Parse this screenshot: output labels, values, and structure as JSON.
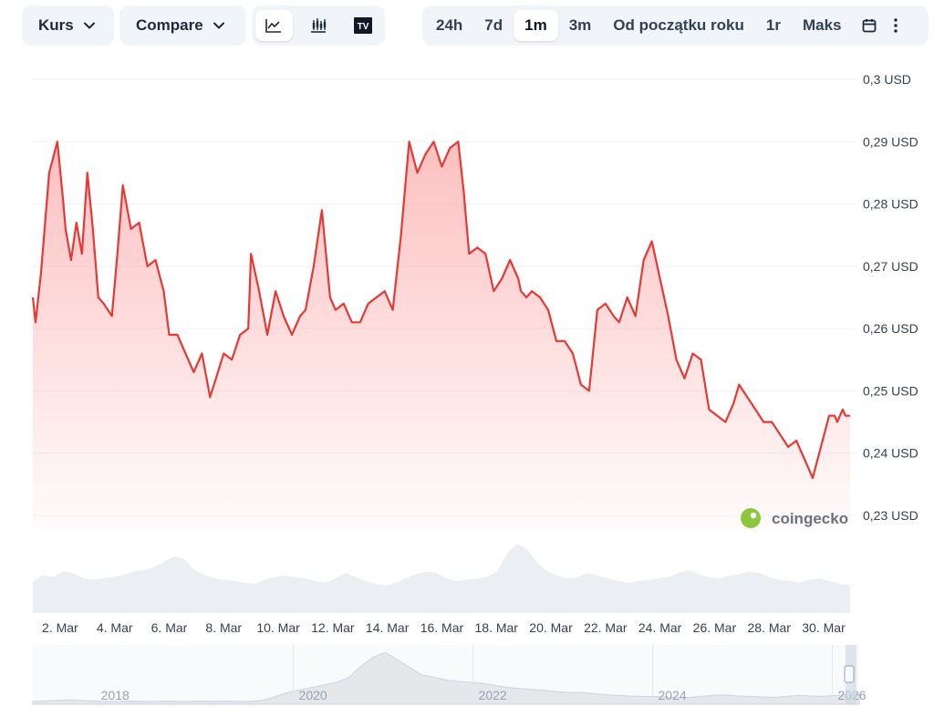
{
  "toolbar": {
    "metric_label": "Kurs",
    "compare_label": "Compare",
    "chart_icons": [
      "line-chart-icon",
      "candlestick-icon",
      "tradingview-icon"
    ],
    "ranges": [
      "24h",
      "7d",
      "1m",
      "3m",
      "Od początku roku",
      "1r",
      "Maks"
    ],
    "active_range": "1m",
    "tv_glyph": "TV"
  },
  "colors": {
    "line": "#e53935",
    "fill": "#fca5a5",
    "volume": "#e2e8f0",
    "grid": "#eef2f6",
    "active_bg": "#ffffff",
    "group_bg": "#f1f5f9"
  },
  "watermark": "coingecko",
  "chart_data": {
    "type": "line",
    "title": "",
    "xlabel": "",
    "ylabel": "",
    "ylim": [
      0.225,
      0.3
    ],
    "y_ticks": [
      "0,3 USD",
      "0,29 USD",
      "0,28 USD",
      "0,27 USD",
      "0,26 USD",
      "0,25 USD",
      "0,24 USD",
      "0,23 USD"
    ],
    "y_tick_values": [
      0.3,
      0.29,
      0.28,
      0.27,
      0.26,
      0.25,
      0.24,
      0.23
    ],
    "x_ticks": [
      "2. Mar",
      "4. Mar",
      "6. Mar",
      "8. Mar",
      "10. Mar",
      "12. Mar",
      "14. Mar",
      "16. Mar",
      "18. Mar",
      "20. Mar",
      "22. Mar",
      "24. Mar",
      "26. Mar",
      "28. Mar",
      "30. Mar"
    ],
    "x_tick_days": [
      2,
      4,
      6,
      8,
      10,
      12,
      14,
      16,
      18,
      20,
      22,
      24,
      26,
      28,
      30
    ],
    "x_range_days": [
      1.0,
      30.97
    ],
    "series": [
      {
        "x": [
          1.0,
          1.1,
          1.3,
          1.6,
          1.9,
          2.1,
          2.2,
          2.4,
          2.6,
          2.8,
          3.0,
          3.2,
          3.4,
          3.6,
          3.9,
          4.1,
          4.3,
          4.6,
          4.9,
          5.2,
          5.5,
          5.8,
          6.0,
          6.3,
          6.6,
          6.9,
          7.2,
          7.5,
          8.0,
          8.3,
          8.6,
          8.9,
          9.0,
          9.3,
          9.6,
          9.9,
          10.2,
          10.5,
          10.8,
          11.0,
          11.3,
          11.6,
          11.9,
          12.1,
          12.4,
          12.7,
          13.0,
          13.3,
          13.6,
          13.9,
          14.2,
          14.5,
          14.8,
          15.1,
          15.4,
          15.7,
          16.0,
          16.3,
          16.6,
          16.8,
          17.0,
          17.3,
          17.6,
          17.9,
          18.2,
          18.5,
          18.8,
          18.9,
          19.1,
          19.3,
          19.6,
          19.9,
          20.2,
          20.5,
          20.8,
          21.1,
          21.4,
          21.7,
          22.0,
          22.3,
          22.5,
          22.8,
          23.1,
          23.4,
          23.7,
          24.0,
          24.3,
          24.6,
          24.9,
          25.2,
          25.5,
          25.8,
          26.1,
          26.4,
          26.7,
          26.9,
          27.2,
          27.5,
          27.8,
          28.1,
          28.4,
          28.7,
          29.0,
          29.3,
          29.6,
          29.9,
          30.2,
          30.4,
          30.5,
          30.6,
          30.7,
          30.8,
          30.97
        ],
        "y": [
          0.265,
          0.261,
          0.269,
          0.285,
          0.29,
          0.281,
          0.276,
          0.271,
          0.277,
          0.272,
          0.285,
          0.276,
          0.265,
          0.264,
          0.262,
          0.272,
          0.283,
          0.276,
          0.277,
          0.27,
          0.271,
          0.266,
          0.259,
          0.259,
          0.256,
          0.253,
          0.256,
          0.249,
          0.256,
          0.255,
          0.259,
          0.26,
          0.272,
          0.266,
          0.259,
          0.266,
          0.262,
          0.259,
          0.262,
          0.263,
          0.27,
          0.279,
          0.265,
          0.263,
          0.264,
          0.261,
          0.261,
          0.264,
          0.265,
          0.266,
          0.263,
          0.275,
          0.29,
          0.285,
          0.288,
          0.29,
          0.286,
          0.289,
          0.29,
          0.282,
          0.272,
          0.273,
          0.272,
          0.266,
          0.268,
          0.271,
          0.268,
          0.266,
          0.265,
          0.266,
          0.265,
          0.263,
          0.258,
          0.258,
          0.256,
          0.251,
          0.25,
          0.263,
          0.264,
          0.262,
          0.261,
          0.265,
          0.262,
          0.271,
          0.274,
          0.268,
          0.262,
          0.255,
          0.252,
          0.256,
          0.255,
          0.247,
          0.246,
          0.245,
          0.248,
          0.251,
          0.249,
          0.247,
          0.245,
          0.245,
          0.243,
          0.241,
          0.242,
          0.239,
          0.236,
          0.241,
          0.246,
          0.246,
          0.245,
          0.246,
          0.247,
          0.246,
          0.246
        ]
      }
    ],
    "volume": [
      0.45,
      0.55,
      0.52,
      0.6,
      0.58,
      0.5,
      0.48,
      0.5,
      0.52,
      0.55,
      0.6,
      0.62,
      0.66,
      0.74,
      0.82,
      0.78,
      0.62,
      0.55,
      0.5,
      0.48,
      0.46,
      0.44,
      0.42,
      0.48,
      0.52,
      0.54,
      0.52,
      0.5,
      0.46,
      0.44,
      0.5,
      0.58,
      0.52,
      0.46,
      0.42,
      0.4,
      0.44,
      0.5,
      0.56,
      0.6,
      0.58,
      0.5,
      0.46,
      0.48,
      0.5,
      0.52,
      0.6,
      0.86,
      1.0,
      0.92,
      0.72,
      0.6,
      0.54,
      0.5,
      0.52,
      0.58,
      0.54,
      0.5,
      0.46,
      0.44,
      0.46,
      0.48,
      0.5,
      0.52,
      0.58,
      0.62,
      0.56,
      0.52,
      0.5,
      0.54,
      0.56,
      0.6,
      0.58,
      0.52,
      0.48,
      0.46,
      0.44,
      0.48,
      0.5,
      0.46,
      0.42,
      0.4
    ],
    "navigator": {
      "labels": [
        "2018",
        "2020",
        "2022",
        "2024",
        "2026"
      ],
      "label_years": [
        2018,
        2020,
        2022,
        2024,
        2026
      ],
      "year_range": [
        2017.1,
        2026.3
      ],
      "profile": [
        0.02,
        0.03,
        0.04,
        0.05,
        0.04,
        0.03,
        0.02,
        0.02,
        0.03,
        0.02,
        0.02,
        0.03,
        0.02,
        0.02,
        0.03,
        0.02,
        0.03,
        0.02,
        0.02,
        0.05,
        0.12,
        0.2,
        0.25,
        0.3,
        0.35,
        0.4,
        0.5,
        0.72,
        0.9,
        1.0,
        0.85,
        0.7,
        0.55,
        0.5,
        0.45,
        0.42,
        0.4,
        0.38,
        0.34,
        0.3,
        0.28,
        0.26,
        0.24,
        0.22,
        0.2,
        0.2,
        0.18,
        0.16,
        0.14,
        0.13,
        0.12,
        0.12,
        0.11,
        0.1,
        0.1,
        0.12,
        0.14,
        0.15,
        0.13,
        0.12,
        0.11,
        0.1,
        0.12,
        0.14,
        0.13,
        0.12,
        0.14,
        0.15,
        0.16
      ]
    }
  }
}
